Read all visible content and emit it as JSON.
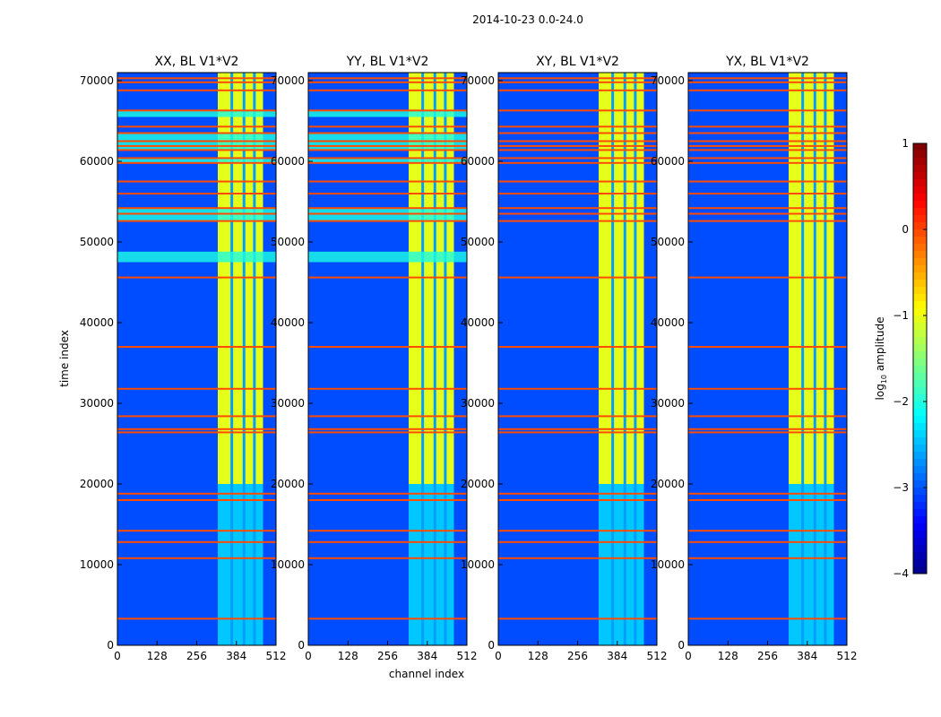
{
  "chart_data": {
    "type": "heatmap",
    "suptitle": "2014-10-23 0.0-24.0",
    "xlabel": "channel index",
    "ylabel": "time index",
    "xlim": [
      0,
      512
    ],
    "ylim": [
      0,
      71000
    ],
    "xticks": [
      0,
      128,
      256,
      384,
      512
    ],
    "yticks": [
      0,
      10000,
      20000,
      30000,
      40000,
      50000,
      60000,
      70000
    ],
    "panels": [
      {
        "title": "XX, BL V1*V2"
      },
      {
        "title": "YY, BL V1*V2"
      },
      {
        "title": "XY, BL V1*V2"
      },
      {
        "title": "YX, BL V1*V2"
      }
    ],
    "colorbar": {
      "label_prefix": "log",
      "label_sub": "10",
      "label_suffix": " amplitude",
      "range": [
        -4,
        1
      ],
      "ticks": [
        1,
        0,
        -1,
        -2,
        -3,
        -4
      ],
      "tick_labels": [
        "1",
        "0",
        "−1",
        "−2",
        "−3",
        "−4"
      ],
      "colormap": "jet"
    },
    "features": {
      "bright_channel_range": [
        324,
        470
      ],
      "bright_level": -1.0,
      "background_level": -3.0,
      "flagged_rows": [
        3300,
        10800,
        12800,
        14200,
        18000,
        18800,
        26400,
        26800,
        28400,
        31800,
        37000,
        45600,
        52600,
        53500,
        54200,
        56000,
        57500,
        59800,
        60400,
        61400,
        61900,
        62500,
        63500,
        64300,
        66300,
        68800,
        69800,
        70300
      ],
      "flag_level": 0.0,
      "band_rows": [
        [
          47500,
          48800
        ],
        [
          52600,
          54200
        ],
        [
          59800,
          60400
        ],
        [
          61400,
          63500
        ],
        [
          65500,
          66300
        ]
      ],
      "band_level": -2.0
    }
  }
}
